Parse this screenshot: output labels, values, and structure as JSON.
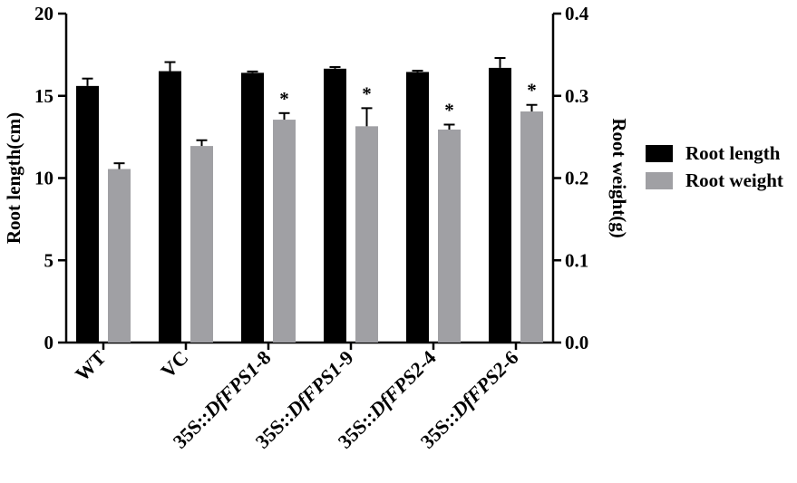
{
  "chart_data": {
    "type": "bar",
    "categories": [
      {
        "prefix": "",
        "italic": "",
        "suffix": "WT"
      },
      {
        "prefix": "",
        "italic": "",
        "suffix": "VC"
      },
      {
        "prefix": "35S::",
        "italic": "DfFPS1",
        "suffix": "-8"
      },
      {
        "prefix": "35S::",
        "italic": "DfFPS1",
        "suffix": "-9"
      },
      {
        "prefix": "35S::",
        "italic": "DfFPS2",
        "suffix": "-4"
      },
      {
        "prefix": "35S::",
        "italic": "DfFPS2",
        "suffix": "-6"
      }
    ],
    "series": [
      {
        "name": "Root length",
        "axis": "left",
        "color": "#000000",
        "values": [
          15.6,
          16.5,
          16.4,
          16.65,
          16.45,
          16.7
        ],
        "errors": [
          0.45,
          0.55,
          0.08,
          0.1,
          0.08,
          0.6
        ],
        "significance": [
          "",
          "",
          "",
          "",
          "",
          ""
        ]
      },
      {
        "name": "Root weight",
        "axis": "right",
        "color": "#a0a0a4",
        "values": [
          0.211,
          0.239,
          0.271,
          0.263,
          0.259,
          0.281
        ],
        "errors": [
          0.007,
          0.007,
          0.008,
          0.022,
          0.006,
          0.008
        ],
        "significance": [
          "",
          "",
          "*",
          "*",
          "*",
          "*"
        ]
      }
    ],
    "ylabel_left": "Root length(cm)",
    "ylabel_right": "Root weight(g)",
    "ylim_left": [
      0,
      20
    ],
    "ylim_right": [
      0,
      0.4
    ],
    "yticks_left": [
      "0",
      "5",
      "10",
      "15",
      "20"
    ],
    "yticks_right": [
      "0.0",
      "0.1",
      "0.2",
      "0.3",
      "0.4"
    ],
    "legend_position": "right",
    "grid": false
  },
  "legend": {
    "items": [
      {
        "label": "Root length",
        "color": "#000000"
      },
      {
        "label": "Root weight",
        "color": "#a0a0a4"
      }
    ]
  }
}
